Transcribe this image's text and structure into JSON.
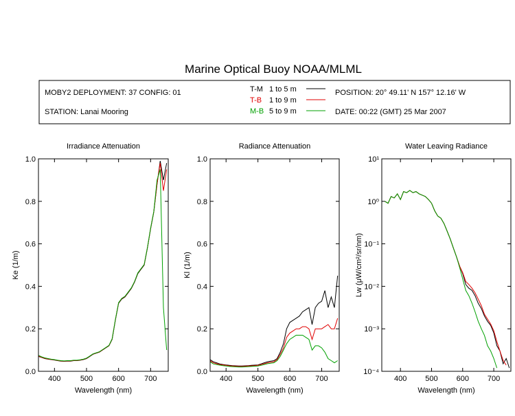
{
  "title": "Marine Optical Buoy NOAA/MLML",
  "info": {
    "deployment": "MOBY2 DEPLOYMENT: 37 CONFIG: 01",
    "station": "STATION: Lanai Mooring",
    "position": "POSITION: 20° 49.11' N   157° 12.16' W",
    "date": "DATE: 00:22 (GMT) 25 Mar 2007"
  },
  "chart_data": [
    {
      "type": "line",
      "title": "Irradiance Attenuation",
      "x_label": "Wavelength (nm)",
      "y_label": "Ke  (1/m)",
      "x": [
        350,
        360,
        370,
        380,
        390,
        400,
        410,
        420,
        430,
        440,
        450,
        460,
        470,
        480,
        490,
        500,
        510,
        520,
        530,
        540,
        550,
        560,
        570,
        580,
        590,
        600,
        610,
        620,
        630,
        640,
        650,
        660,
        670,
        680,
        690,
        700,
        710,
        720,
        730,
        740,
        750
      ],
      "xlim": [
        350,
        755
      ],
      "xticks": [
        400,
        500,
        600,
        700
      ],
      "ylim": [
        0,
        1
      ],
      "yticks": [
        {
          "value": 0,
          "label": "0.0"
        },
        0.2,
        0.4,
        0.6,
        0.8,
        {
          "value": 1,
          "label": "1.0"
        }
      ],
      "series": [
        {
          "name": "T-M",
          "range": "1 to 5  m",
          "color": "#000000",
          "values": [
            0.07,
            0.065,
            0.06,
            0.057,
            0.055,
            0.053,
            0.05,
            0.048,
            0.047,
            0.048,
            0.048,
            0.05,
            0.05,
            0.052,
            0.055,
            0.06,
            0.07,
            0.08,
            0.085,
            0.09,
            0.1,
            0.11,
            0.12,
            0.15,
            0.24,
            0.32,
            0.34,
            0.35,
            0.37,
            0.39,
            0.42,
            0.46,
            0.48,
            0.5,
            0.58,
            0.67,
            0.75,
            0.88,
            0.99,
            0.9,
            0.98
          ]
        },
        {
          "name": "T-B",
          "range": "1 to 9  m",
          "color": "#e00000",
          "values": [
            0.072,
            0.066,
            0.061,
            0.058,
            0.056,
            0.054,
            0.051,
            0.049,
            0.048,
            0.049,
            0.049,
            0.051,
            0.051,
            0.053,
            0.056,
            0.061,
            0.071,
            0.081,
            0.086,
            0.091,
            0.101,
            0.111,
            0.121,
            0.152,
            0.242,
            0.322,
            0.342,
            0.352,
            0.372,
            0.392,
            0.422,
            0.462,
            0.482,
            0.502,
            0.582,
            0.672,
            0.752,
            0.882,
            0.98,
            0.85,
            0.95
          ]
        },
        {
          "name": "M-B",
          "range": "5 to 9  m",
          "color": "#00a000",
          "values": [
            0.075,
            0.068,
            0.063,
            0.06,
            0.057,
            0.055,
            0.052,
            0.05,
            0.049,
            0.05,
            0.05,
            0.052,
            0.052,
            0.054,
            0.057,
            0.062,
            0.072,
            0.082,
            0.087,
            0.092,
            0.102,
            0.112,
            0.122,
            0.153,
            0.243,
            0.323,
            0.343,
            0.353,
            0.373,
            0.393,
            0.423,
            0.463,
            0.483,
            0.503,
            0.583,
            0.673,
            0.753,
            0.9,
            0.95,
            0.3,
            0.1
          ]
        }
      ]
    },
    {
      "type": "line",
      "title": "Radiance Attenuation",
      "x_label": "Wavelength (nm)",
      "y_label": "Kl  (1/m)",
      "x": [
        350,
        360,
        370,
        380,
        390,
        400,
        410,
        420,
        430,
        440,
        450,
        460,
        470,
        480,
        490,
        500,
        510,
        520,
        530,
        540,
        550,
        560,
        570,
        580,
        590,
        600,
        610,
        620,
        630,
        640,
        650,
        660,
        670,
        680,
        690,
        700,
        710,
        720,
        730,
        740,
        750
      ],
      "xlim": [
        350,
        755
      ],
      "xticks": [
        400,
        500,
        600,
        700
      ],
      "ylim": [
        0,
        1
      ],
      "yticks": [
        {
          "value": 0,
          "label": "0.0"
        },
        0.2,
        0.4,
        0.6,
        0.8,
        {
          "value": 1,
          "label": "1.0"
        }
      ],
      "series": [
        {
          "color": "#000000",
          "values": [
            0.055,
            0.045,
            0.04,
            0.035,
            0.032,
            0.03,
            0.028,
            0.027,
            0.026,
            0.025,
            0.025,
            0.026,
            0.027,
            0.028,
            0.029,
            0.03,
            0.035,
            0.04,
            0.045,
            0.048,
            0.05,
            0.06,
            0.09,
            0.13,
            0.2,
            0.23,
            0.24,
            0.25,
            0.26,
            0.28,
            0.29,
            0.3,
            0.22,
            0.3,
            0.32,
            0.33,
            0.38,
            0.3,
            0.35,
            0.3,
            0.45
          ]
        },
        {
          "color": "#e00000",
          "values": [
            0.05,
            0.04,
            0.036,
            0.032,
            0.03,
            0.028,
            0.026,
            0.025,
            0.024,
            0.023,
            0.023,
            0.024,
            0.025,
            0.026,
            0.027,
            0.028,
            0.032,
            0.036,
            0.04,
            0.043,
            0.045,
            0.055,
            0.08,
            0.11,
            0.16,
            0.18,
            0.19,
            0.2,
            0.2,
            0.21,
            0.21,
            0.2,
            0.15,
            0.2,
            0.2,
            0.2,
            0.21,
            0.22,
            0.2,
            0.2,
            0.25
          ]
        },
        {
          "color": "#00a000",
          "values": [
            0.045,
            0.035,
            0.032,
            0.029,
            0.027,
            0.025,
            0.023,
            0.022,
            0.021,
            0.02,
            0.02,
            0.021,
            0.022,
            0.023,
            0.024,
            0.025,
            0.028,
            0.032,
            0.036,
            0.038,
            0.04,
            0.05,
            0.07,
            0.1,
            0.13,
            0.15,
            0.16,
            0.17,
            0.17,
            0.17,
            0.16,
            0.15,
            0.1,
            0.12,
            0.12,
            0.11,
            0.09,
            0.06,
            0.05,
            0.04,
            0.05
          ]
        }
      ]
    },
    {
      "type": "line",
      "title": "Water Leaving Radiance",
      "x_label": "Wavelength (nm)",
      "y_label": "Lw  (μW/cm²/sr/nm)",
      "log_scale": true,
      "x": [
        350,
        360,
        370,
        380,
        390,
        400,
        410,
        420,
        430,
        440,
        450,
        460,
        470,
        480,
        490,
        500,
        510,
        520,
        530,
        540,
        550,
        560,
        570,
        580,
        590,
        600,
        610,
        620,
        630,
        640,
        650,
        660,
        670,
        680,
        690,
        700,
        710,
        720,
        730,
        740,
        750
      ],
      "xlim": [
        340,
        755
      ],
      "xticks": [
        400,
        500,
        600,
        700
      ],
      "ylim": [
        0.0001,
        10
      ],
      "yticks": [
        {
          "value": 0.0001,
          "label": "10⁻⁴"
        },
        {
          "value": 0.001,
          "label": "10⁻³"
        },
        {
          "value": 0.01,
          "label": "10⁻²"
        },
        {
          "value": 0.1,
          "label": "10⁻¹"
        },
        {
          "value": 1,
          "label": "10⁰"
        },
        {
          "value": 10,
          "label": "10¹"
        }
      ],
      "series": [
        {
          "color": "#000000",
          "values": [
            1.0,
            0.9,
            1.3,
            1.2,
            1.5,
            1.1,
            1.7,
            1.6,
            1.8,
            1.6,
            1.7,
            1.5,
            1.4,
            1.3,
            1.1,
            0.9,
            0.6,
            0.45,
            0.4,
            0.3,
            0.2,
            0.13,
            0.08,
            0.05,
            0.03,
            0.02,
            0.011,
            0.009,
            0.008,
            0.006,
            0.004,
            0.003,
            0.002,
            0.0015,
            0.0012,
            0.0008,
            0.0004,
            0.0003,
            0.00015,
            0.0002,
            0.00012
          ]
        },
        {
          "color": "#e00000",
          "values": [
            1.0,
            0.9,
            1.3,
            1.2,
            1.5,
            1.1,
            1.7,
            1.6,
            1.8,
            1.6,
            1.7,
            1.5,
            1.4,
            1.3,
            1.1,
            0.9,
            0.6,
            0.45,
            0.4,
            0.3,
            0.2,
            0.13,
            0.08,
            0.05,
            0.03,
            0.021,
            0.013,
            0.011,
            0.009,
            0.007,
            0.005,
            0.0035,
            0.0022,
            0.0017,
            0.0013,
            0.0009,
            0.0005,
            0.0003,
            0.00018,
            0.00014,
            null
          ]
        },
        {
          "color": "#00a000",
          "values": [
            1.0,
            0.9,
            1.3,
            1.2,
            1.5,
            1.1,
            1.7,
            1.6,
            1.8,
            1.6,
            1.7,
            1.5,
            1.4,
            1.3,
            1.1,
            0.9,
            0.6,
            0.45,
            0.4,
            0.3,
            0.2,
            0.13,
            0.08,
            0.05,
            0.028,
            0.015,
            0.008,
            0.006,
            0.004,
            0.0025,
            0.0015,
            0.001,
            0.0007,
            0.0004,
            0.0003,
            0.0002,
            0.00012,
            null,
            null,
            null,
            null
          ]
        }
      ]
    }
  ]
}
